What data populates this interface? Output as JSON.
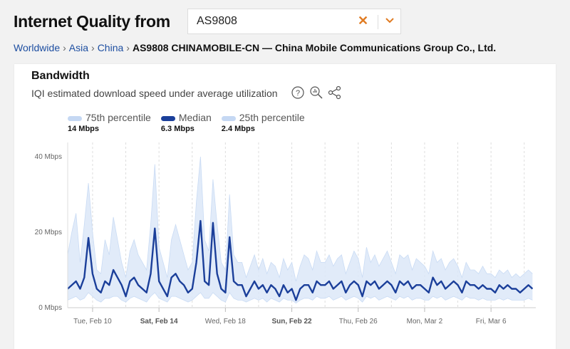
{
  "header": {
    "title": "Internet Quality from",
    "search_value": "AS9808",
    "clear_icon": "x-icon",
    "dropdown_icon": "chevron-down-icon",
    "accent": "#e07b22"
  },
  "breadcrumb": {
    "items": [
      "Worldwide",
      "Asia",
      "China"
    ],
    "current": "AS9808 CHINAMOBILE-CN — China Mobile Communications Group Co., Ltd."
  },
  "card": {
    "title": "Bandwidth",
    "subtitle": "IQI estimated download speed under average utilization",
    "icons": [
      "help-icon",
      "zoom-icon",
      "share-icon"
    ]
  },
  "legend": [
    {
      "label": "75th percentile",
      "value": "14 Mbps",
      "color": "#c5d8f3"
    },
    {
      "label": "Median",
      "value": "6.3 Mbps",
      "color": "#1b3f9a"
    },
    {
      "label": "25th percentile",
      "value": "2.4 Mbps",
      "color": "#c5d8f3"
    }
  ],
  "chart_data": {
    "type": "area",
    "x_start": "Feb 8 12:00",
    "x_step_hours": 6,
    "ylim": [
      0,
      42
    ],
    "yticks": [
      "0 Mbps",
      "20 Mbps",
      "40 Mbps"
    ],
    "ytick_values": [
      0,
      20,
      40
    ],
    "xticks": [
      {
        "label": "Tue, Feb 10",
        "day": 10,
        "bold": false
      },
      {
        "label": "Sat, Feb 14",
        "day": 14,
        "bold": true
      },
      {
        "label": "Wed, Feb 18",
        "day": 18,
        "bold": false
      },
      {
        "label": "Sun, Feb 22",
        "day": 22,
        "bold": true
      },
      {
        "label": "Thu, Feb 26",
        "day": 26,
        "bold": false
      },
      {
        "label": "Mon, Mar 2",
        "day": 30,
        "bold": false
      },
      {
        "label": "Fri, Mar 6",
        "day": 34,
        "bold": false
      }
    ],
    "grid": "vertical dashed",
    "series": [
      {
        "name": "75th percentile",
        "color": "#dce8f8",
        "values": [
          14,
          20,
          25,
          12,
          22,
          33,
          20,
          10,
          9,
          18,
          14,
          24,
          18,
          12,
          8,
          15,
          18,
          14,
          12,
          10,
          22,
          38,
          16,
          12,
          8,
          18,
          22,
          18,
          14,
          10,
          12,
          28,
          40,
          18,
          15,
          34,
          22,
          12,
          10,
          30,
          14,
          12,
          12,
          8,
          11,
          14,
          10,
          13,
          9,
          12,
          11,
          8,
          13,
          10,
          12,
          7,
          11,
          14,
          13,
          10,
          15,
          12,
          12,
          14,
          11,
          13,
          14,
          9,
          12,
          15,
          13,
          8,
          16,
          12,
          14,
          11,
          13,
          15,
          12,
          9,
          14,
          13,
          14,
          10,
          13,
          12,
          11,
          9,
          15,
          12,
          13,
          10,
          12,
          13,
          11,
          8,
          12,
          10,
          10,
          9,
          11,
          9,
          9,
          8,
          10,
          9,
          10,
          8,
          9,
          8,
          9,
          10,
          9
        ]
      },
      {
        "name": "Median",
        "color": "#1b3f9a",
        "values": [
          5,
          6,
          7,
          5,
          8,
          18.5,
          9,
          5,
          4,
          7,
          6,
          10,
          8,
          6,
          3,
          7,
          8,
          6,
          5,
          4,
          9,
          21,
          7,
          5,
          3,
          8,
          9,
          7,
          6,
          4,
          5,
          12,
          23,
          7,
          6,
          22.5,
          9,
          5,
          4,
          18.7,
          7,
          6,
          6,
          3,
          5,
          7,
          5,
          6,
          4,
          6,
          5,
          3,
          6,
          4,
          5,
          2,
          5,
          6,
          6,
          4,
          7,
          6,
          6,
          7,
          5,
          6,
          7,
          4,
          6,
          7,
          6,
          3,
          7,
          6,
          7,
          5,
          6,
          7,
          6,
          4,
          7,
          6,
          7,
          5,
          6,
          6,
          5,
          4,
          8,
          6,
          7,
          5,
          6,
          7,
          6,
          4,
          7,
          6,
          6,
          5,
          6,
          5,
          5,
          4,
          6,
          5,
          6,
          5,
          5,
          4,
          5,
          6,
          5
        ]
      },
      {
        "name": "25th percentile",
        "color": "#dce8f8",
        "values": [
          2,
          2.5,
          3,
          2,
          2.5,
          4,
          3,
          2,
          1.5,
          2.5,
          2.5,
          3,
          3,
          2,
          1.5,
          2.5,
          3,
          2.5,
          2,
          1.5,
          3,
          4,
          2.5,
          2,
          1.5,
          3,
          3,
          2.5,
          2,
          1.5,
          2,
          3,
          4,
          2.5,
          2.5,
          4,
          3,
          2,
          1.5,
          4,
          2.5,
          2,
          2,
          1.5,
          2,
          2.5,
          2,
          2.5,
          1.5,
          2.5,
          2,
          1.5,
          2.5,
          2,
          2,
          1.2,
          2,
          2.5,
          2.5,
          2,
          3,
          2.5,
          2.5,
          3,
          2,
          2.5,
          3,
          2,
          2.5,
          3,
          2.5,
          1.5,
          3,
          2.5,
          3,
          2,
          2.5,
          3,
          2.5,
          2,
          3,
          2.5,
          3,
          2,
          2.5,
          2.5,
          2,
          2,
          3,
          2.5,
          3,
          2,
          2.5,
          3,
          2.5,
          2,
          3,
          2.5,
          2.5,
          2,
          2.5,
          2,
          2,
          2,
          2.5,
          2,
          2.5,
          2,
          2,
          2,
          2,
          2.5,
          2
        ]
      }
    ]
  }
}
